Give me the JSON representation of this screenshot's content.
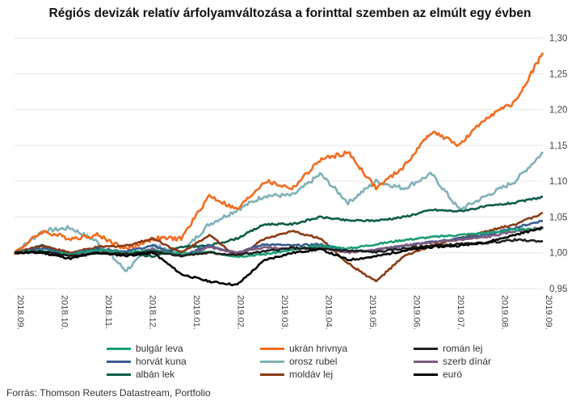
{
  "title": "Régiós devizák relatív árfolyamváltozása a forinttal szemben az elmúlt egy évben",
  "source": "Forrás: Thomson  Reuters Datastream, Portfolio",
  "chart_data": {
    "type": "line",
    "title": "Régiós devizák relatív árfolyamváltozása a forinttal szemben az elmúlt egy évben",
    "xlabel": "",
    "ylabel": "",
    "x_ticks": [
      "2018.09.",
      "2018.10.",
      "2018.11.",
      "2018.12.",
      "2019.01.",
      "2019.02.",
      "2019.03.",
      "2019.04.",
      "2019.05.",
      "2019.06.",
      "2019.07.",
      "2019.08.",
      "2019.09."
    ],
    "y_ticks": [
      "0,95",
      "1,00",
      "1,05",
      "1,10",
      "1,15",
      "1,20",
      "1,25",
      "1,30"
    ],
    "ylim": [
      0.95,
      1.3
    ],
    "y_axis_side": "right",
    "grid": "horizontal",
    "legend_position": "bottom",
    "series": [
      {
        "name": "bulgár leva",
        "color": "#1a9e77",
        "values": [
          1.0,
          1.003,
          0.998,
          1.004,
          1.0,
          1.003,
          0.998,
          1.001,
          0.995,
          0.998,
          1.004,
          1.01,
          1.006,
          1.012,
          1.018,
          1.022,
          1.025,
          1.028,
          1.032,
          1.034
        ]
      },
      {
        "name": "ukrán hrivnya",
        "color": "#f26b1d",
        "values": [
          1.0,
          1.03,
          1.02,
          1.025,
          1.005,
          1.02,
          1.02,
          1.08,
          1.06,
          1.1,
          1.09,
          1.13,
          1.14,
          1.09,
          1.12,
          1.17,
          1.15,
          1.19,
          1.21,
          1.28
        ]
      },
      {
        "name": "román lej",
        "color": "#1f1f1f",
        "values": [
          1.0,
          1.002,
          0.995,
          1.0,
          0.998,
          1.002,
          0.996,
          1.0,
          0.997,
          1.002,
          1.007,
          1.005,
          1.003,
          1.001,
          1.006,
          1.01,
          1.012,
          1.014,
          1.018,
          1.016
        ]
      },
      {
        "name": "horvát kuna",
        "color": "#3b5c8f",
        "values": [
          1.0,
          1.006,
          0.998,
          1.006,
          1.002,
          1.01,
          0.995,
          1.01,
          1.0,
          1.012,
          1.01,
          1.012,
          1.002,
          1.004,
          1.01,
          1.015,
          1.02,
          1.025,
          1.035,
          1.045
        ]
      },
      {
        "name": "orosz rubel",
        "color": "#7fb1b7",
        "values": [
          1.0,
          1.03,
          1.035,
          1.015,
          0.975,
          1.01,
          1.0,
          1.04,
          1.06,
          1.08,
          1.08,
          1.11,
          1.07,
          1.1,
          1.09,
          1.11,
          1.06,
          1.08,
          1.1,
          1.14
        ]
      },
      {
        "name": "szerb dínár",
        "color": "#7e5a7e",
        "values": [
          1.0,
          1.002,
          0.996,
          1.003,
          0.998,
          1.005,
          0.994,
          1.008,
          1.0,
          1.008,
          1.005,
          1.008,
          1.0,
          1.004,
          1.01,
          1.014,
          1.018,
          1.022,
          1.03,
          1.035
        ]
      },
      {
        "name": "albán lek",
        "color": "#0e5c4a",
        "values": [
          1.0,
          1.01,
          0.998,
          1.004,
          1.0,
          0.995,
          1.008,
          1.01,
          1.02,
          1.04,
          1.04,
          1.05,
          1.045,
          1.045,
          1.05,
          1.06,
          1.058,
          1.065,
          1.07,
          1.078
        ]
      },
      {
        "name": "moldáv lej",
        "color": "#8b3a14",
        "values": [
          1.0,
          1.01,
          1.0,
          1.008,
          1.01,
          1.02,
          1.0,
          1.025,
          0.995,
          1.02,
          1.03,
          1.02,
          0.985,
          0.96,
          0.995,
          1.01,
          1.02,
          1.03,
          1.04,
          1.055
        ]
      },
      {
        "name": "euró",
        "color": "#000000",
        "values": [
          1.0,
          1.0,
          0.992,
          1.0,
          0.996,
          1.0,
          0.97,
          0.96,
          0.955,
          0.99,
          1.0,
          1.005,
          0.99,
          0.995,
          1.003,
          1.008,
          1.01,
          1.015,
          1.025,
          1.035
        ]
      }
    ]
  }
}
